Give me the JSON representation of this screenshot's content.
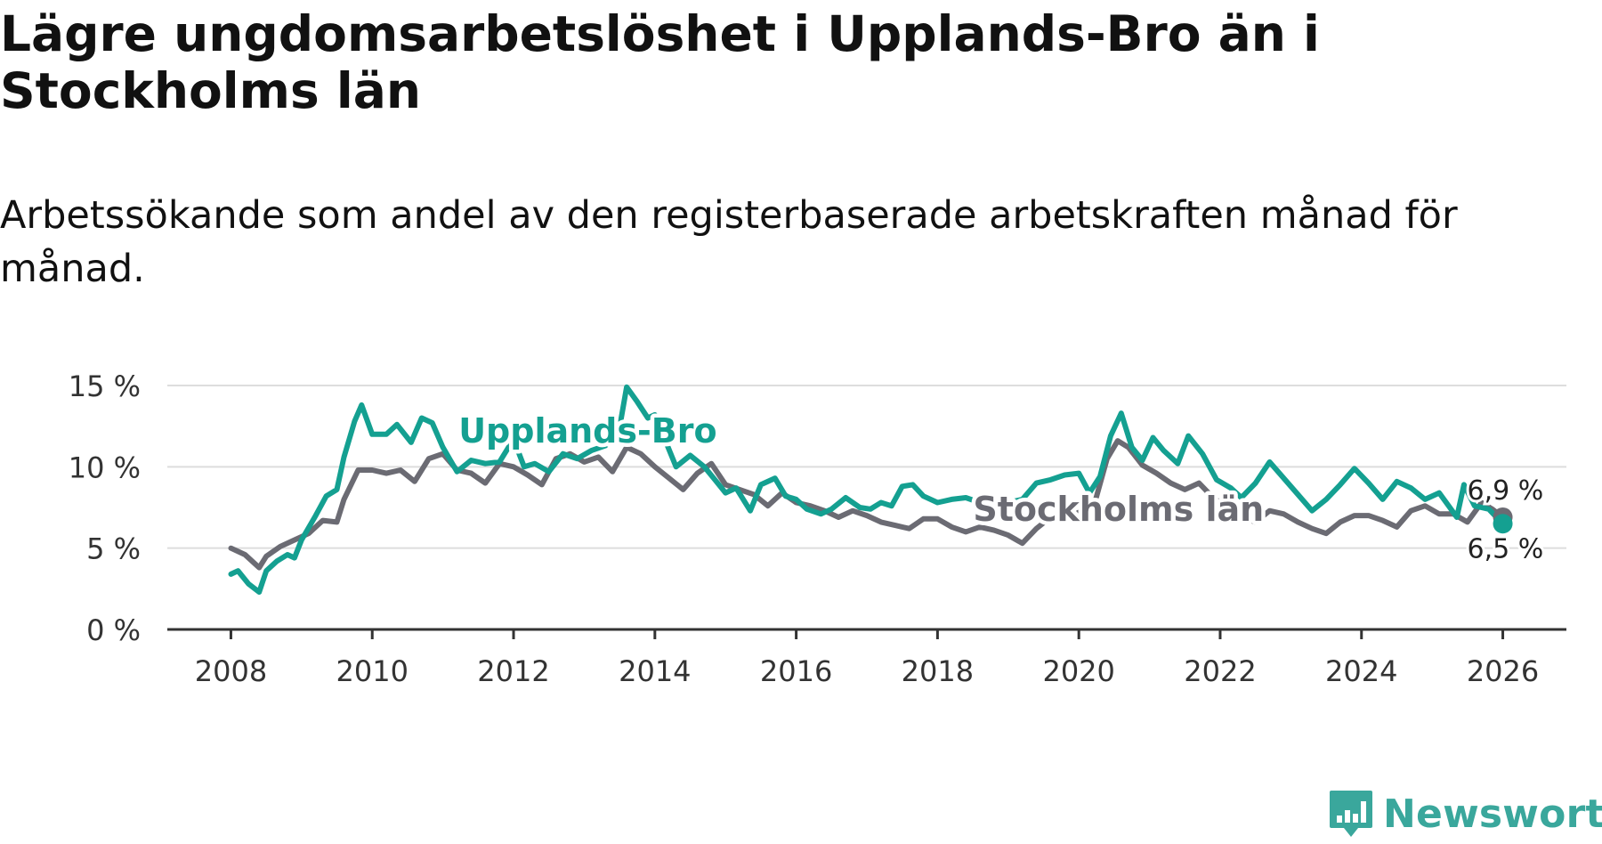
{
  "title": "Lägre ungdomsarbetslöshet i Upplands-Bro än i Stockholms län",
  "subtitle": "Arbetssökande som andel av den registerbaserade arbetskraften månad för månad.",
  "brand": {
    "name": "Newsworthy"
  },
  "colors": {
    "upplands": "#14a091",
    "stockholm": "#6b6b73",
    "grid": "#dddddd",
    "axis": "#333333",
    "brand": "#3aa79c"
  },
  "chart_data": {
    "type": "line",
    "title": "Lägre ungdomsarbetslöshet i Upplands-Bro än i Stockholms län",
    "xlabel": "",
    "ylabel": "",
    "xlim": [
      2007.1,
      2026.9
    ],
    "ylim": [
      0,
      15
    ],
    "grid": true,
    "y_ticks": [
      {
        "value": 0,
        "label": "0 %"
      },
      {
        "value": 5,
        "label": "5 %"
      },
      {
        "value": 10,
        "label": "10 %"
      },
      {
        "value": 15,
        "label": "15 %"
      }
    ],
    "x_ticks": [
      {
        "value": 2008,
        "label": "2008"
      },
      {
        "value": 2010,
        "label": "2010"
      },
      {
        "value": 2012,
        "label": "2012"
      },
      {
        "value": 2014,
        "label": "2014"
      },
      {
        "value": 2016,
        "label": "2016"
      },
      {
        "value": 2018,
        "label": "2018"
      },
      {
        "value": 2020,
        "label": "2020"
      },
      {
        "value": 2022,
        "label": "2022"
      },
      {
        "value": 2024,
        "label": "2024"
      },
      {
        "value": 2026,
        "label": "2026"
      }
    ],
    "series": [
      {
        "name": "Stockholms län",
        "color": "#6b6b73",
        "label_position": [
          2018.0,
          6.8
        ],
        "end_label": "6,9 %",
        "points": [
          [
            2008.0,
            5.0
          ],
          [
            2008.2,
            4.6
          ],
          [
            2008.4,
            3.8
          ],
          [
            2008.5,
            4.5
          ],
          [
            2008.7,
            5.1
          ],
          [
            2008.9,
            5.5
          ],
          [
            2009.1,
            5.9
          ],
          [
            2009.3,
            6.7
          ],
          [
            2009.5,
            6.6
          ],
          [
            2009.6,
            8.0
          ],
          [
            2009.8,
            9.8
          ],
          [
            2010.0,
            9.8
          ],
          [
            2010.2,
            9.6
          ],
          [
            2010.4,
            9.8
          ],
          [
            2010.6,
            9.1
          ],
          [
            2010.8,
            10.5
          ],
          [
            2011.0,
            10.8
          ],
          [
            2011.2,
            9.8
          ],
          [
            2011.4,
            9.6
          ],
          [
            2011.6,
            9.0
          ],
          [
            2011.8,
            10.2
          ],
          [
            2012.0,
            10.0
          ],
          [
            2012.2,
            9.5
          ],
          [
            2012.4,
            8.9
          ],
          [
            2012.6,
            10.5
          ],
          [
            2012.8,
            10.8
          ],
          [
            2013.0,
            10.3
          ],
          [
            2013.2,
            10.6
          ],
          [
            2013.4,
            9.7
          ],
          [
            2013.6,
            11.2
          ],
          [
            2013.8,
            10.8
          ],
          [
            2014.0,
            10.0
          ],
          [
            2014.2,
            9.3
          ],
          [
            2014.4,
            8.6
          ],
          [
            2014.6,
            9.6
          ],
          [
            2014.8,
            10.2
          ],
          [
            2015.0,
            8.9
          ],
          [
            2015.2,
            8.6
          ],
          [
            2015.4,
            8.3
          ],
          [
            2015.6,
            7.6
          ],
          [
            2015.8,
            8.4
          ],
          [
            2016.0,
            7.8
          ],
          [
            2016.2,
            7.6
          ],
          [
            2016.4,
            7.3
          ],
          [
            2016.6,
            6.9
          ],
          [
            2016.8,
            7.3
          ],
          [
            2017.0,
            7.0
          ],
          [
            2017.2,
            6.6
          ],
          [
            2017.4,
            6.4
          ],
          [
            2017.6,
            6.2
          ],
          [
            2017.8,
            6.8
          ],
          [
            2018.0,
            6.8
          ],
          [
            2018.2,
            6.3
          ],
          [
            2018.4,
            6.0
          ],
          [
            2018.6,
            6.3
          ],
          [
            2018.8,
            6.1
          ],
          [
            2019.0,
            5.8
          ],
          [
            2019.2,
            5.3
          ],
          [
            2019.4,
            6.2
          ],
          [
            2019.6,
            6.9
          ],
          [
            2019.8,
            6.8
          ],
          [
            2020.0,
            7.2
          ],
          [
            2020.2,
            7.4
          ],
          [
            2020.4,
            10.5
          ],
          [
            2020.55,
            11.6
          ],
          [
            2020.7,
            11.2
          ],
          [
            2020.9,
            10.1
          ],
          [
            2021.1,
            9.6
          ],
          [
            2021.3,
            9.0
          ],
          [
            2021.5,
            8.6
          ],
          [
            2021.7,
            9.0
          ],
          [
            2021.9,
            8.1
          ],
          [
            2022.1,
            7.5
          ],
          [
            2022.3,
            6.9
          ],
          [
            2022.5,
            6.6
          ],
          [
            2022.7,
            7.3
          ],
          [
            2022.9,
            7.1
          ],
          [
            2023.1,
            6.6
          ],
          [
            2023.3,
            6.2
          ],
          [
            2023.5,
            5.9
          ],
          [
            2023.7,
            6.6
          ],
          [
            2023.9,
            7.0
          ],
          [
            2024.1,
            7.0
          ],
          [
            2024.3,
            6.7
          ],
          [
            2024.5,
            6.3
          ],
          [
            2024.7,
            7.3
          ],
          [
            2024.9,
            7.6
          ],
          [
            2025.1,
            7.1
          ],
          [
            2025.3,
            7.1
          ],
          [
            2025.5,
            6.6
          ],
          [
            2025.7,
            7.8
          ],
          [
            2025.85,
            7.4
          ],
          [
            2026.0,
            6.9
          ]
        ]
      },
      {
        "name": "Upplands-Bro",
        "color": "#14a091",
        "label_position": [
          2013.05,
          11.5
        ],
        "end_label": "6,5 %",
        "points": [
          [
            2008.0,
            3.4
          ],
          [
            2008.1,
            3.6
          ],
          [
            2008.25,
            2.8
          ],
          [
            2008.4,
            2.3
          ],
          [
            2008.5,
            3.6
          ],
          [
            2008.65,
            4.2
          ],
          [
            2008.8,
            4.6
          ],
          [
            2008.9,
            4.4
          ],
          [
            2009.0,
            5.5
          ],
          [
            2009.2,
            7.0
          ],
          [
            2009.35,
            8.2
          ],
          [
            2009.5,
            8.6
          ],
          [
            2009.6,
            10.6
          ],
          [
            2009.75,
            12.8
          ],
          [
            2009.85,
            13.8
          ],
          [
            2010.0,
            12.0
          ],
          [
            2010.2,
            12.0
          ],
          [
            2010.35,
            12.6
          ],
          [
            2010.55,
            11.5
          ],
          [
            2010.7,
            13.0
          ],
          [
            2010.85,
            12.7
          ],
          [
            2011.0,
            11.2
          ],
          [
            2011.2,
            9.7
          ],
          [
            2011.4,
            10.4
          ],
          [
            2011.6,
            10.2
          ],
          [
            2011.8,
            10.3
          ],
          [
            2012.0,
            11.7
          ],
          [
            2012.15,
            10.0
          ],
          [
            2012.3,
            10.2
          ],
          [
            2012.5,
            9.7
          ],
          [
            2012.7,
            10.8
          ],
          [
            2012.9,
            10.5
          ],
          [
            2013.1,
            11.0
          ],
          [
            2013.3,
            11.3
          ],
          [
            2013.5,
            12.4
          ],
          [
            2013.6,
            14.9
          ],
          [
            2013.75,
            14.0
          ],
          [
            2013.9,
            13.0
          ],
          [
            2014.0,
            13.2
          ],
          [
            2014.15,
            11.6
          ],
          [
            2014.3,
            10.0
          ],
          [
            2014.5,
            10.7
          ],
          [
            2014.7,
            10.0
          ],
          [
            2014.85,
            9.2
          ],
          [
            2015.0,
            8.4
          ],
          [
            2015.15,
            8.7
          ],
          [
            2015.35,
            7.3
          ],
          [
            2015.5,
            8.9
          ],
          [
            2015.7,
            9.3
          ],
          [
            2015.85,
            8.2
          ],
          [
            2016.0,
            8.0
          ],
          [
            2016.15,
            7.4
          ],
          [
            2016.35,
            7.1
          ],
          [
            2016.5,
            7.4
          ],
          [
            2016.7,
            8.1
          ],
          [
            2016.9,
            7.5
          ],
          [
            2017.05,
            7.4
          ],
          [
            2017.2,
            7.8
          ],
          [
            2017.35,
            7.6
          ],
          [
            2017.5,
            8.8
          ],
          [
            2017.65,
            8.9
          ],
          [
            2017.8,
            8.2
          ],
          [
            2018.0,
            7.8
          ],
          [
            2018.2,
            8.0
          ],
          [
            2018.4,
            8.1
          ],
          [
            2018.6,
            7.8
          ],
          [
            2018.8,
            7.9
          ],
          [
            2019.0,
            7.8
          ],
          [
            2019.2,
            8.0
          ],
          [
            2019.4,
            9.0
          ],
          [
            2019.6,
            9.2
          ],
          [
            2019.8,
            9.5
          ],
          [
            2020.0,
            9.6
          ],
          [
            2020.15,
            8.4
          ],
          [
            2020.3,
            9.4
          ],
          [
            2020.45,
            11.9
          ],
          [
            2020.6,
            13.3
          ],
          [
            2020.75,
            11.2
          ],
          [
            2020.9,
            10.4
          ],
          [
            2021.05,
            11.8
          ],
          [
            2021.2,
            11.0
          ],
          [
            2021.4,
            10.2
          ],
          [
            2021.55,
            11.9
          ],
          [
            2021.75,
            10.8
          ],
          [
            2021.95,
            9.2
          ],
          [
            2022.15,
            8.7
          ],
          [
            2022.3,
            8.1
          ],
          [
            2022.5,
            9.0
          ],
          [
            2022.7,
            10.3
          ],
          [
            2022.9,
            9.3
          ],
          [
            2023.1,
            8.3
          ],
          [
            2023.3,
            7.3
          ],
          [
            2023.5,
            8.0
          ],
          [
            2023.7,
            8.9
          ],
          [
            2023.9,
            9.9
          ],
          [
            2024.1,
            9.0
          ],
          [
            2024.3,
            8.0
          ],
          [
            2024.5,
            9.1
          ],
          [
            2024.7,
            8.7
          ],
          [
            2024.9,
            8.0
          ],
          [
            2025.1,
            8.4
          ],
          [
            2025.25,
            7.5
          ],
          [
            2025.35,
            6.9
          ],
          [
            2025.45,
            8.9
          ],
          [
            2025.6,
            7.6
          ],
          [
            2025.8,
            7.4
          ],
          [
            2026.0,
            6.5
          ]
        ]
      }
    ]
  }
}
